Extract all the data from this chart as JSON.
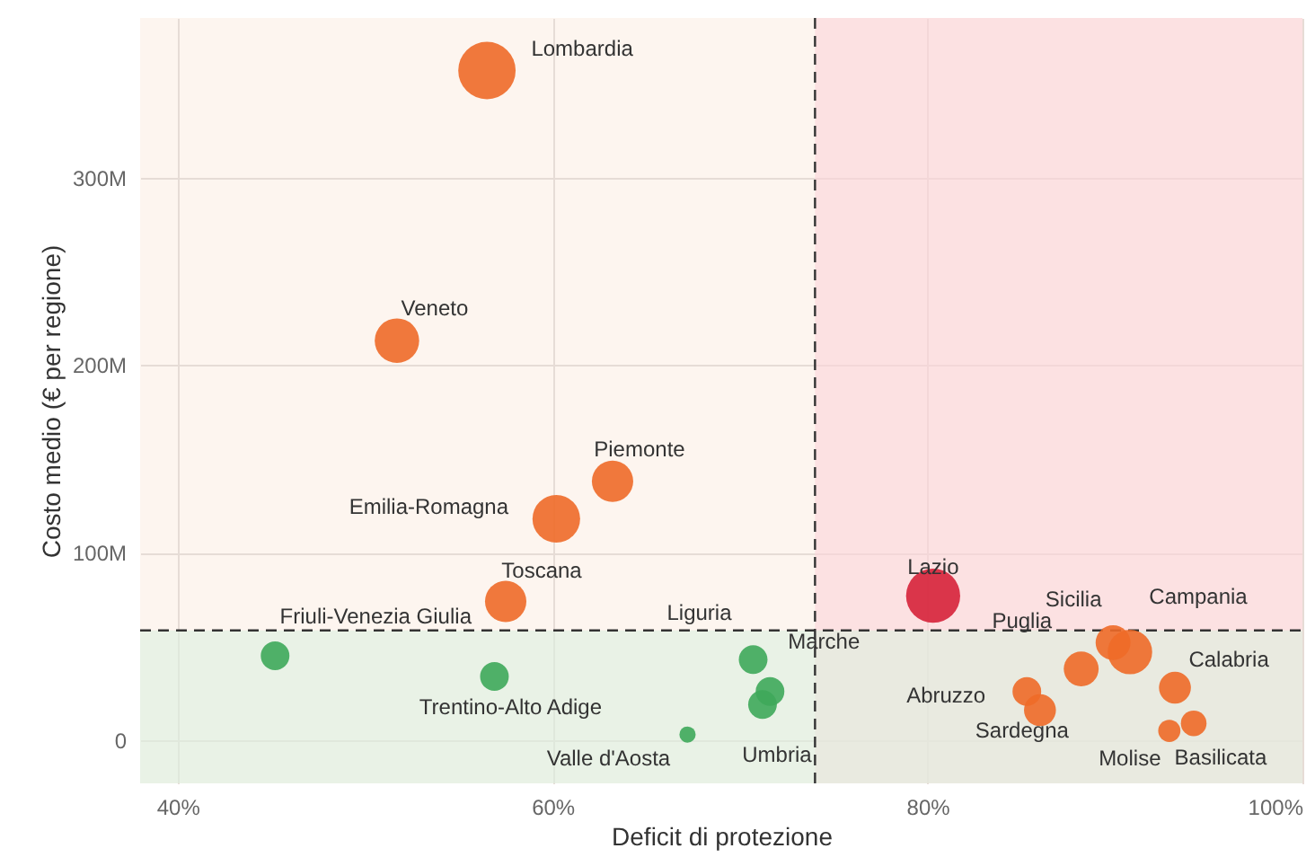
{
  "chart_data": {
    "type": "bubble",
    "xlabel": "Deficit di protezione",
    "ylabel": "Costo medio (€ per regione)",
    "x": [
      56.5,
      51.7,
      63.2,
      60.2,
      57.5,
      45.2,
      56.9,
      67.2,
      70.7,
      71.6,
      71.2,
      80.3,
      89.9,
      90.8,
      88.2,
      93.2,
      85.3,
      86.0,
      92.9,
      94.2
    ],
    "values": [
      357,
      213,
      138,
      118,
      74,
      45,
      34,
      3,
      43,
      26,
      19,
      77,
      52,
      47,
      38,
      28,
      26,
      16,
      5,
      9
    ],
    "sizes": [
      1,
      0.6,
      0.52,
      0.69,
      0.52,
      0.25,
      0.25,
      0.08,
      0.25,
      0.25,
      0.25,
      0.89,
      0.37,
      0.6,
      0.37,
      0.31,
      0.25,
      0.31,
      0.15,
      0.2
    ],
    "colors": [
      "#ee6a28",
      "#ee6a28",
      "#ee6a28",
      "#ee6a28",
      "#ee6a28",
      "#3ea85a",
      "#3ea85a",
      "#3ea85a",
      "#3ea85a",
      "#3ea85a",
      "#3ea85a",
      "#d6223a",
      "#ee6a28",
      "#ee6a28",
      "#ee6a28",
      "#ee6a28",
      "#ee6a28",
      "#ee6a28",
      "#ee6a28",
      "#ee6a28"
    ],
    "annotations": [
      {
        "text": "Lombardia",
        "x": 56.5,
        "y": 357
      },
      {
        "text": "Veneto",
        "x": 51.7,
        "y": 213
      },
      {
        "text": "Piemonte",
        "x": 63.2,
        "y": 138
      },
      {
        "text": "Emilia-Romagna",
        "x": 60.2,
        "y": 118
      },
      {
        "text": "Toscana",
        "x": 57.5,
        "y": 74
      },
      {
        "text": "Friuli-Venezia Giulia",
        "x": 45.2,
        "y": 45
      },
      {
        "text": "Trentino-Alto Adige",
        "x": 56.9,
        "y": 34
      },
      {
        "text": "Valle d'Aosta",
        "x": 67.2,
        "y": 3
      },
      {
        "text": "Liguria",
        "x": 70.7,
        "y": 43
      },
      {
        "text": "Marche",
        "x": 71.6,
        "y": 26
      },
      {
        "text": "Umbria",
        "x": 71.2,
        "y": 19
      },
      {
        "text": "Lazio",
        "x": 80.3,
        "y": 77
      },
      {
        "text": "Sicilia",
        "x": 89.9,
        "y": 52
      },
      {
        "text": "Campania",
        "x": 90.8,
        "y": 47
      },
      {
        "text": "Puglia",
        "x": 88.2,
        "y": 38
      },
      {
        "text": "Calabria",
        "x": 93.2,
        "y": 28
      },
      {
        "text": "Abruzzo",
        "x": 85.3,
        "y": 26
      },
      {
        "text": "Sardegna",
        "x": 86.0,
        "y": 16
      },
      {
        "text": "Molise",
        "x": 92.9,
        "y": 5
      },
      {
        "text": "Basilicata",
        "x": 94.2,
        "y": 9
      }
    ],
    "xlim": [
      38,
      100
    ],
    "ylim": [
      -23,
      385
    ],
    "xticks": [
      {
        "value": 40,
        "label": "40%"
      },
      {
        "value": 60,
        "label": "60%"
      },
      {
        "value": 80,
        "label": "80%"
      },
      {
        "value": 100,
        "label": "100%"
      }
    ],
    "yticks": [
      {
        "value": 0,
        "label": "0"
      },
      {
        "value": 100,
        "label": "100M"
      },
      {
        "value": 200,
        "label": "200M"
      },
      {
        "value": 300,
        "label": "300M"
      }
    ],
    "ref_lines": [
      {
        "axis": "x",
        "value": 74,
        "line_style": "dashed",
        "color": "#333333"
      },
      {
        "axis": "y",
        "value": 58.5,
        "line_style": "dashed",
        "color": "#333333"
      }
    ],
    "bands": [
      {
        "axis": "x",
        "from": 74,
        "to": 100,
        "color": "#fcd3d8"
      },
      {
        "axis": "y",
        "from": -23,
        "to": 58.5,
        "color": "#dcf0e0"
      }
    ],
    "grid": true,
    "marker": "circle"
  }
}
